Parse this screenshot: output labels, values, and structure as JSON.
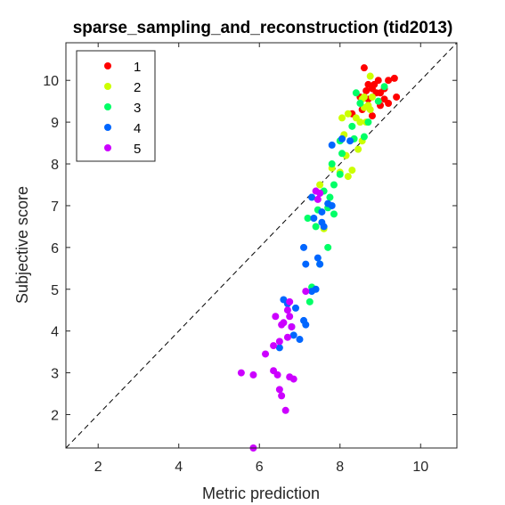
{
  "chart_data": {
    "type": "scatter",
    "title": "sparse_sampling_and_reconstruction (tid2013)",
    "xlabel": "Metric prediction",
    "ylabel": "Subjective score",
    "xlim": [
      1.2,
      10.9
    ],
    "ylim": [
      1.2,
      10.9
    ],
    "xticks": [
      2,
      4,
      6,
      8,
      10
    ],
    "yticks": [
      2,
      3,
      4,
      5,
      6,
      7,
      8,
      9,
      10
    ],
    "grid": false,
    "legend_position": "top-left",
    "reference_line": "y = x (dashed)",
    "series": [
      {
        "name": "1",
        "color": "#ff0000",
        "points": [
          [
            8.6,
            10.3
          ],
          [
            8.7,
            9.9
          ],
          [
            8.8,
            9.8
          ],
          [
            8.9,
            9.7
          ],
          [
            9.0,
            9.7
          ],
          [
            9.1,
            9.8
          ],
          [
            9.2,
            10.0
          ],
          [
            9.35,
            10.05
          ],
          [
            9.4,
            9.6
          ],
          [
            9.2,
            9.45
          ],
          [
            9.0,
            9.4
          ],
          [
            8.8,
            9.15
          ],
          [
            8.55,
            9.3
          ],
          [
            8.7,
            9.55
          ],
          [
            8.65,
            9.75
          ],
          [
            8.3,
            9.2
          ],
          [
            8.95,
            10.0
          ],
          [
            8.5,
            9.6
          ],
          [
            9.1,
            9.55
          ],
          [
            8.85,
            9.9
          ]
        ]
      },
      {
        "name": "2",
        "color": "#ccff00",
        "points": [
          [
            8.75,
            10.1
          ],
          [
            8.6,
            9.6
          ],
          [
            8.7,
            9.4
          ],
          [
            8.4,
            9.1
          ],
          [
            8.5,
            9.0
          ],
          [
            8.65,
            9.0
          ],
          [
            8.55,
            9.55
          ],
          [
            8.8,
            9.6
          ],
          [
            8.2,
            9.2
          ],
          [
            8.05,
            9.1
          ],
          [
            8.1,
            8.7
          ],
          [
            8.15,
            8.2
          ],
          [
            8.0,
            7.8
          ],
          [
            8.3,
            7.85
          ],
          [
            8.55,
            8.55
          ],
          [
            8.45,
            8.35
          ],
          [
            8.75,
            9.3
          ],
          [
            7.8,
            7.9
          ],
          [
            8.2,
            7.7
          ],
          [
            7.6,
            6.45
          ],
          [
            7.5,
            7.5
          ],
          [
            8.6,
            9.35
          ]
        ]
      },
      {
        "name": "3",
        "color": "#00ff66",
        "points": [
          [
            9.1,
            9.85
          ],
          [
            8.95,
            9.5
          ],
          [
            8.5,
            9.45
          ],
          [
            8.4,
            9.7
          ],
          [
            8.3,
            8.9
          ],
          [
            8.7,
            9.0
          ],
          [
            8.6,
            8.65
          ],
          [
            8.35,
            8.6
          ],
          [
            8.0,
            8.55
          ],
          [
            7.8,
            8.0
          ],
          [
            8.05,
            8.25
          ],
          [
            8.0,
            7.75
          ],
          [
            7.85,
            7.5
          ],
          [
            7.75,
            7.2
          ],
          [
            7.6,
            7.35
          ],
          [
            7.45,
            6.9
          ],
          [
            7.7,
            6.95
          ],
          [
            7.85,
            6.8
          ],
          [
            7.4,
            6.5
          ],
          [
            7.2,
            6.7
          ],
          [
            7.7,
            6.0
          ],
          [
            7.5,
            5.6
          ],
          [
            7.3,
            5.05
          ],
          [
            7.25,
            4.7
          ]
        ]
      },
      {
        "name": "4",
        "color": "#0066ff",
        "points": [
          [
            7.8,
            8.45
          ],
          [
            8.05,
            8.6
          ],
          [
            8.25,
            8.55
          ],
          [
            7.7,
            7.05
          ],
          [
            7.5,
            7.3
          ],
          [
            7.8,
            7.0
          ],
          [
            7.55,
            6.85
          ],
          [
            7.3,
            7.2
          ],
          [
            7.35,
            6.7
          ],
          [
            7.55,
            6.6
          ],
          [
            7.6,
            6.5
          ],
          [
            7.1,
            6.0
          ],
          [
            7.45,
            5.75
          ],
          [
            7.5,
            5.6
          ],
          [
            7.15,
            5.6
          ],
          [
            7.4,
            5.0
          ],
          [
            7.3,
            4.95
          ],
          [
            6.7,
            4.65
          ],
          [
            6.6,
            4.75
          ],
          [
            6.9,
            4.55
          ],
          [
            7.1,
            4.25
          ],
          [
            7.15,
            4.15
          ],
          [
            6.8,
            4.1
          ],
          [
            7.0,
            3.8
          ],
          [
            6.5,
            3.6
          ],
          [
            6.85,
            3.9
          ]
        ]
      },
      {
        "name": "5",
        "color": "#cc00ff",
        "points": [
          [
            7.4,
            7.35
          ],
          [
            7.5,
            7.3
          ],
          [
            7.45,
            7.15
          ],
          [
            7.15,
            4.95
          ],
          [
            6.75,
            4.7
          ],
          [
            6.7,
            4.5
          ],
          [
            6.6,
            4.2
          ],
          [
            6.4,
            4.35
          ],
          [
            6.75,
            4.35
          ],
          [
            6.55,
            4.15
          ],
          [
            6.8,
            4.1
          ],
          [
            6.7,
            3.85
          ],
          [
            6.5,
            3.75
          ],
          [
            6.35,
            3.65
          ],
          [
            6.15,
            3.45
          ],
          [
            6.35,
            3.05
          ],
          [
            6.45,
            2.95
          ],
          [
            6.75,
            2.9
          ],
          [
            6.85,
            2.85
          ],
          [
            6.5,
            2.6
          ],
          [
            6.55,
            2.45
          ],
          [
            6.65,
            2.1
          ],
          [
            5.55,
            3.0
          ],
          [
            5.85,
            2.95
          ],
          [
            5.85,
            1.2
          ]
        ]
      }
    ]
  }
}
